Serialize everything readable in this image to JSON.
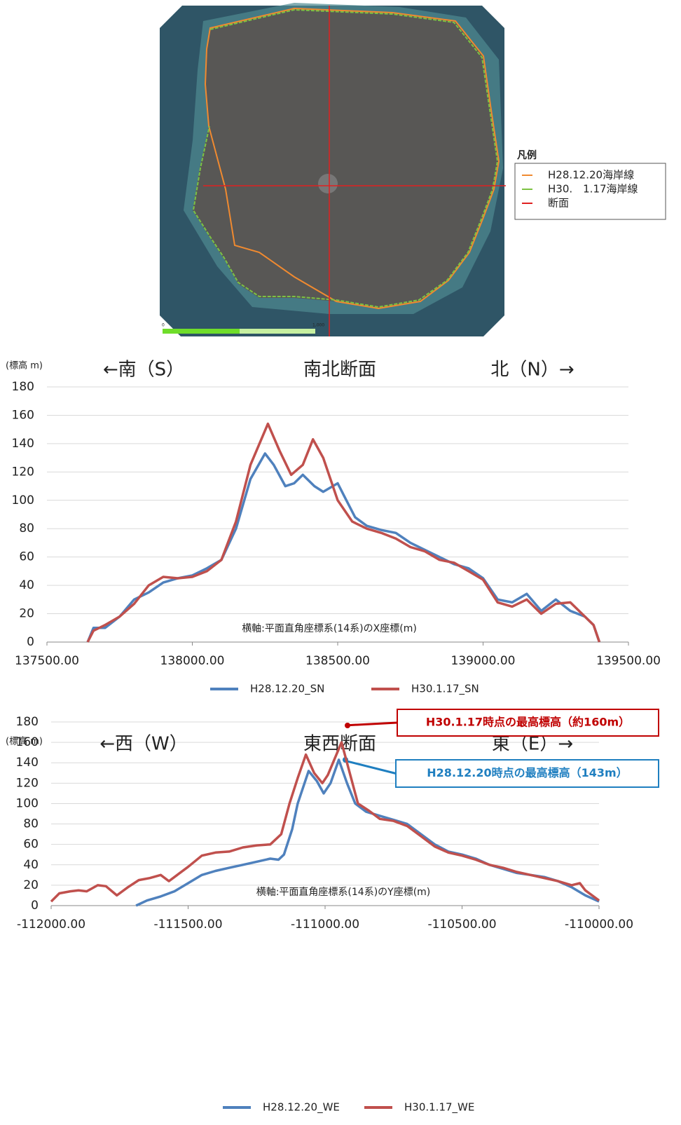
{
  "map": {
    "legend_title": "凡例",
    "legend": [
      {
        "label": "H28.12.20海岸線",
        "color": "#f08a30"
      },
      {
        "label": "H30.　1.17海岸線",
        "color": "#7cc242"
      },
      {
        "label": "断面",
        "color": "#e02020"
      }
    ],
    "scale_labels": [
      "0",
      "1,000"
    ]
  },
  "chart_data": [
    {
      "type": "line",
      "title": "南北断面",
      "ylabel": "(標高 m)",
      "left_label": "←南（S）",
      "right_label": "北（N）→",
      "annotations": [
        {
          "text": "横軸:平面直角座標系(14系)のX座標(m)"
        }
      ],
      "xlim": [
        137500,
        139500
      ],
      "xticks": [
        {
          "value": 137500,
          "label": "137500.00"
        },
        {
          "value": 138000,
          "label": "138000.00"
        },
        {
          "value": 138500,
          "label": "138500.00"
        },
        {
          "value": 139000,
          "label": "139000.00"
        },
        {
          "value": 139500,
          "label": "139500.00"
        }
      ],
      "ylim": [
        0,
        180
      ],
      "yticks": [
        0,
        20,
        40,
        60,
        80,
        100,
        120,
        140,
        160,
        180
      ],
      "grid": true,
      "series": [
        {
          "name": "H28.12.20_SN",
          "color": "#4f81bd",
          "x": [
            137640,
            137660,
            137700,
            137750,
            137800,
            137850,
            137900,
            137950,
            138000,
            138050,
            138100,
            138150,
            138200,
            138250,
            138280,
            138320,
            138350,
            138380,
            138420,
            138450,
            138500,
            138530,
            138560,
            138600,
            138650,
            138700,
            138750,
            138800,
            138850,
            138900,
            138950,
            139000,
            139050,
            139100,
            139150,
            139200,
            139250,
            139300,
            139350,
            139380,
            139400
          ],
          "values": [
            0,
            10,
            10,
            18,
            30,
            35,
            42,
            45,
            47,
            52,
            58,
            80,
            115,
            133,
            125,
            110,
            112,
            118,
            110,
            106,
            112,
            100,
            88,
            82,
            79,
            77,
            70,
            65,
            60,
            55,
            52,
            45,
            30,
            28,
            34,
            22,
            30,
            22,
            18,
            12,
            0
          ]
        },
        {
          "name": "H30.1.17_SN",
          "color": "#c0504d",
          "x": [
            137640,
            137660,
            137700,
            137750,
            137800,
            137850,
            137900,
            137950,
            138000,
            138050,
            138100,
            138150,
            138200,
            138260,
            138300,
            138340,
            138380,
            138415,
            138450,
            138500,
            138550,
            138600,
            138650,
            138700,
            138750,
            138800,
            138850,
            138900,
            138950,
            139000,
            139050,
            139100,
            139150,
            139200,
            139250,
            139300,
            139350,
            139380,
            139400
          ],
          "values": [
            0,
            8,
            12,
            18,
            27,
            40,
            46,
            45,
            46,
            50,
            58,
            85,
            125,
            154,
            135,
            118,
            125,
            143,
            130,
            100,
            85,
            80,
            77,
            73,
            67,
            64,
            58,
            56,
            50,
            44,
            28,
            25,
            30,
            20,
            27,
            28,
            18,
            12,
            0
          ]
        }
      ]
    },
    {
      "type": "line",
      "title": "東西断面",
      "ylabel": "(標高 m)",
      "left_label": "←西（W）",
      "right_label": "東（E）→",
      "annotations": [
        {
          "text": "横軸:平面直角座標系(14系)のY座標(m)"
        },
        {
          "text": "H30.1.17時点の最高標高（約160m）",
          "color": "#c00000"
        },
        {
          "text": "H28.12.20時点の最高標高（143m）",
          "color": "#1f7fc0"
        }
      ],
      "xlim": [
        -112000,
        -110000
      ],
      "xticks": [
        {
          "value": -112000,
          "label": "-112000.00"
        },
        {
          "value": -111500,
          "label": "-111500.00"
        },
        {
          "value": -111000,
          "label": "-111000.00"
        },
        {
          "value": -110500,
          "label": "-110500.00"
        },
        {
          "value": -110000,
          "label": "-110000.00"
        }
      ],
      "ylim": [
        0,
        180
      ],
      "yticks": [
        0,
        20,
        40,
        60,
        80,
        100,
        120,
        140,
        160,
        180
      ],
      "grid": true,
      "series": [
        {
          "name": "H28.12.20_WE",
          "color": "#4f81bd",
          "x": [
            -111690,
            -111650,
            -111600,
            -111550,
            -111500,
            -111450,
            -111400,
            -111350,
            -111300,
            -111250,
            -111200,
            -111170,
            -111150,
            -111120,
            -111100,
            -111060,
            -111030,
            -111005,
            -110980,
            -110950,
            -110920,
            -110890,
            -110850,
            -110800,
            -110750,
            -110700,
            -110650,
            -110600,
            -110550,
            -110500,
            -110450,
            -110400,
            -110350,
            -110300,
            -110250,
            -110200,
            -110150,
            -110100,
            -110050,
            -110000
          ],
          "values": [
            0,
            5,
            9,
            14,
            22,
            30,
            34,
            37,
            40,
            43,
            46,
            45,
            50,
            75,
            100,
            132,
            122,
            110,
            120,
            143,
            120,
            100,
            92,
            88,
            84,
            80,
            70,
            60,
            53,
            50,
            46,
            40,
            36,
            32,
            30,
            28,
            24,
            18,
            10,
            4
          ]
        },
        {
          "name": "H30.1.17_WE",
          "color": "#c0504d",
          "x": [
            -112000,
            -111970,
            -111930,
            -111900,
            -111870,
            -111830,
            -111800,
            -111760,
            -111720,
            -111680,
            -111640,
            -111600,
            -111570,
            -111540,
            -111500,
            -111450,
            -111400,
            -111350,
            -111300,
            -111250,
            -111200,
            -111160,
            -111130,
            -111100,
            -111070,
            -111040,
            -111010,
            -110990,
            -110940,
            -110910,
            -110880,
            -110840,
            -110800,
            -110750,
            -110700,
            -110650,
            -110600,
            -110550,
            -110500,
            -110450,
            -110400,
            -110350,
            -110300,
            -110250,
            -110200,
            -110150,
            -110100,
            -110070,
            -110050,
            -110000
          ],
          "values": [
            4,
            12,
            14,
            15,
            14,
            20,
            19,
            10,
            18,
            25,
            27,
            30,
            24,
            30,
            38,
            49,
            52,
            53,
            57,
            59,
            60,
            70,
            100,
            125,
            148,
            130,
            120,
            128,
            160,
            130,
            100,
            93,
            85,
            83,
            78,
            68,
            58,
            52,
            49,
            45,
            40,
            37,
            33,
            30,
            27,
            24,
            20,
            22,
            15,
            5
          ]
        }
      ]
    }
  ]
}
